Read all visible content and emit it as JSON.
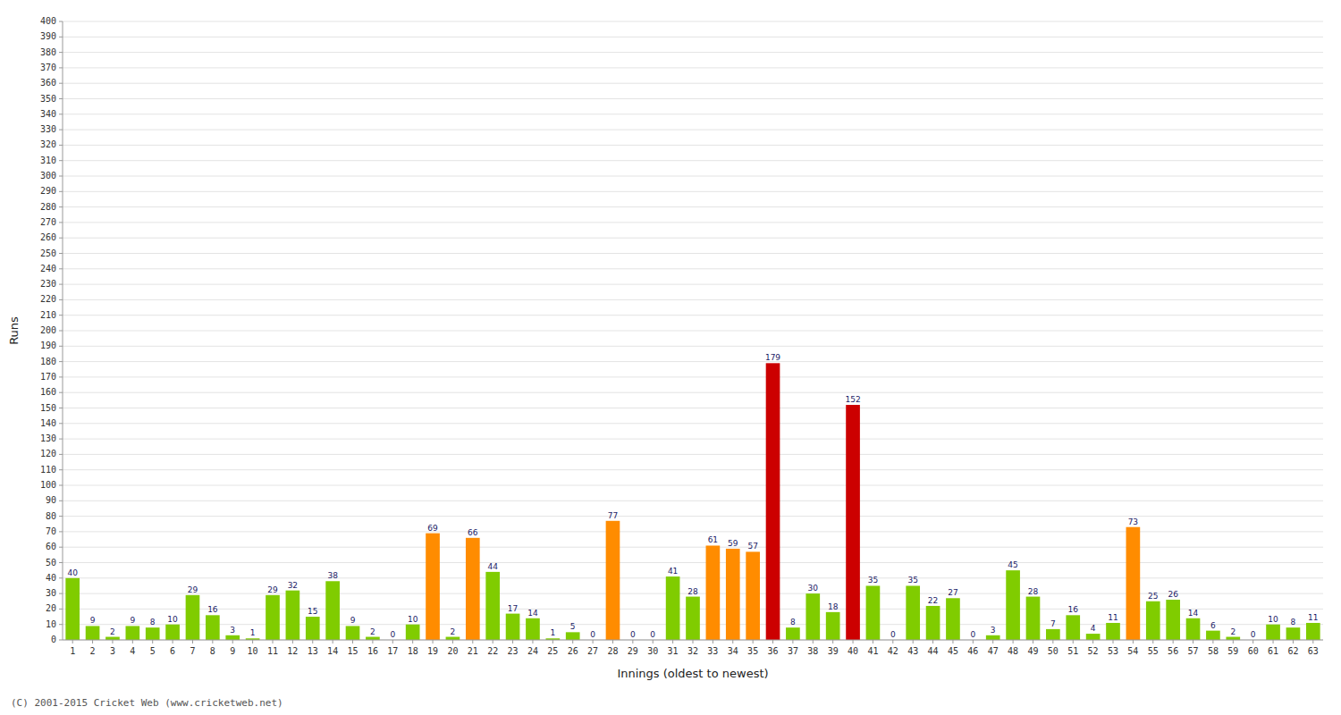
{
  "chart_data": {
    "type": "bar",
    "xlabel": "Innings (oldest to newest)",
    "ylabel": "Runs",
    "annotations": [
      "(C) 2001-2015 Cricket Web (www.cricketweb.net)"
    ],
    "categories": [
      "1",
      "2",
      "3",
      "4",
      "5",
      "6",
      "7",
      "8",
      "9",
      "10",
      "11",
      "12",
      "13",
      "14",
      "15",
      "16",
      "17",
      "18",
      "19",
      "20",
      "21",
      "22",
      "23",
      "24",
      "25",
      "26",
      "27",
      "28",
      "29",
      "30",
      "31",
      "32",
      "33",
      "34",
      "35",
      "36",
      "37",
      "38",
      "39",
      "40",
      "41",
      "42",
      "43",
      "44",
      "45",
      "46",
      "47",
      "48",
      "49",
      "50",
      "51",
      "52",
      "53",
      "54",
      "55",
      "56",
      "57",
      "58",
      "59",
      "60",
      "61",
      "62",
      "63"
    ],
    "values": [
      40,
      9,
      2,
      9,
      8,
      10,
      29,
      16,
      3,
      1,
      29,
      32,
      15,
      38,
      9,
      2,
      0,
      10,
      69,
      2,
      66,
      44,
      17,
      14,
      1,
      5,
      0,
      77,
      0,
      0,
      41,
      28,
      61,
      59,
      57,
      179,
      8,
      30,
      18,
      152,
      35,
      0,
      35,
      22,
      27,
      0,
      3,
      45,
      28,
      7,
      16,
      4,
      11,
      73,
      25,
      26,
      14,
      6,
      2,
      0,
      10,
      8,
      11
    ],
    "colors": [
      "#80cc00",
      "#80cc00",
      "#80cc00",
      "#80cc00",
      "#80cc00",
      "#80cc00",
      "#80cc00",
      "#80cc00",
      "#80cc00",
      "#80cc00",
      "#80cc00",
      "#80cc00",
      "#80cc00",
      "#80cc00",
      "#80cc00",
      "#80cc00",
      "#80cc00",
      "#80cc00",
      "#ff8c00",
      "#80cc00",
      "#ff8c00",
      "#80cc00",
      "#80cc00",
      "#80cc00",
      "#80cc00",
      "#80cc00",
      "#80cc00",
      "#ff8c00",
      "#80cc00",
      "#80cc00",
      "#80cc00",
      "#80cc00",
      "#ff8c00",
      "#ff8c00",
      "#ff8c00",
      "#cc0000",
      "#80cc00",
      "#80cc00",
      "#80cc00",
      "#cc0000",
      "#80cc00",
      "#80cc00",
      "#80cc00",
      "#80cc00",
      "#80cc00",
      "#80cc00",
      "#80cc00",
      "#80cc00",
      "#80cc00",
      "#80cc00",
      "#80cc00",
      "#80cc00",
      "#80cc00",
      "#ff8c00",
      "#80cc00",
      "#80cc00",
      "#80cc00",
      "#80cc00",
      "#80cc00",
      "#80cc00",
      "#80cc00",
      "#80cc00",
      "#80cc00"
    ],
    "ylim": [
      0,
      400
    ],
    "yticks": [
      0,
      10,
      20,
      30,
      40,
      50,
      60,
      70,
      80,
      90,
      100,
      110,
      120,
      130,
      140,
      150,
      160,
      170,
      180,
      190,
      200,
      210,
      220,
      230,
      240,
      250,
      260,
      270,
      280,
      290,
      300,
      310,
      320,
      330,
      340,
      350,
      360,
      370,
      380,
      390,
      400
    ],
    "grid": true,
    "data_labels": true
  }
}
